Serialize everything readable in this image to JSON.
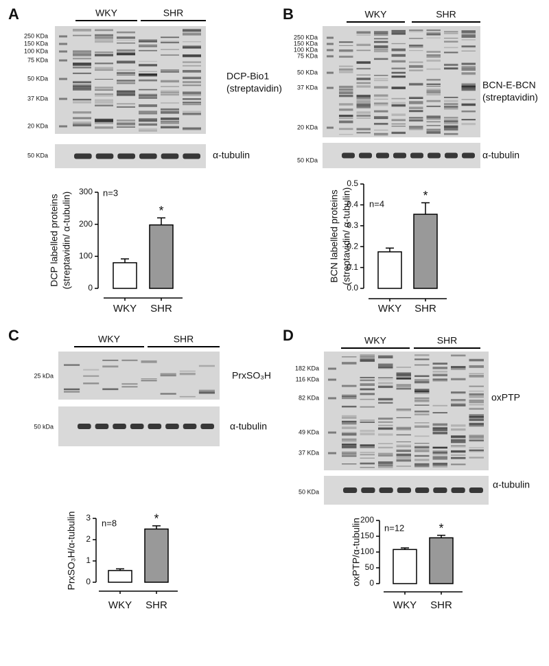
{
  "panels": [
    {
      "letter": "A",
      "groups": [
        "WKY",
        "SHR"
      ],
      "markers": [
        "250 KDa",
        "150 KDa",
        "100 KDa",
        "75 KDa",
        "50 KDa",
        "37 KDa",
        "20 KDa"
      ],
      "blot_label": [
        "DCP-Bio1",
        "(streptavidin)"
      ],
      "tubulin_marker": "50 KDa",
      "tubulin_label": "α-tubulin"
    },
    {
      "letter": "B",
      "groups": [
        "WKY",
        "SHR"
      ],
      "markers": [
        "250 KDa",
        "150 KDa",
        "100 KDa",
        "75 KDa",
        "50 KDa",
        "37 KDa",
        "20 KDa"
      ],
      "blot_label": [
        "BCN-E-BCN",
        "(streptavidin)"
      ],
      "tubulin_marker": "50 KDa",
      "tubulin_label": "α-tubulin"
    },
    {
      "letter": "C",
      "groups": [
        "WKY",
        "SHR"
      ],
      "markers": [
        "25 kDa"
      ],
      "blot_label": [
        "PrxSO₃H"
      ],
      "tubulin_marker": "50 kDa",
      "tubulin_label": "α-tubulin"
    },
    {
      "letter": "D",
      "groups": [
        "WKY",
        "SHR"
      ],
      "markers": [
        "182 KDa",
        "116 KDa",
        "82 KDa",
        "49 KDa",
        "37 KDa"
      ],
      "blot_label": [
        "oxPTP"
      ],
      "tubulin_marker": "50 KDa",
      "tubulin_label": "α-tubulin"
    }
  ],
  "chart_data": [
    {
      "type": "bar",
      "categories": [
        "WKY",
        "SHR"
      ],
      "values": [
        80,
        198
      ],
      "errors": [
        12,
        22
      ],
      "colors": [
        "#ffffff",
        "#999999"
      ],
      "ylabel": [
        "DCP labelled proteins",
        "(streptavidin/ α-tubulin)"
      ],
      "ylim": [
        0,
        300
      ],
      "yticks": [
        0,
        100,
        200,
        300
      ],
      "annotations": [
        "n=3",
        "*"
      ]
    },
    {
      "type": "bar",
      "categories": [
        "WKY",
        "SHR"
      ],
      "values": [
        0.175,
        0.355
      ],
      "errors": [
        0.018,
        0.055
      ],
      "colors": [
        "#ffffff",
        "#999999"
      ],
      "ylabel": [
        "BCN labelled proteins",
        "(streptavidin/ α-tubulin)"
      ],
      "ylim": [
        0,
        0.5
      ],
      "yticks": [
        {
          "value": 0,
          "label": "0.0"
        },
        0.1,
        0.2,
        0.3,
        0.4,
        0.5
      ],
      "annotations": [
        "n=4",
        "*"
      ]
    },
    {
      "type": "bar",
      "categories": [
        "WKY",
        "SHR"
      ],
      "values": [
        0.55,
        2.5
      ],
      "errors": [
        0.08,
        0.15
      ],
      "colors": [
        "#ffffff",
        "#999999"
      ],
      "ylabel": [
        "PrxSO₃H/α-tubulin"
      ],
      "ylim": [
        0,
        3
      ],
      "yticks": [
        0,
        1,
        2,
        3
      ],
      "annotations": [
        "n=8",
        "*"
      ]
    },
    {
      "type": "bar",
      "categories": [
        "WKY",
        "SHR"
      ],
      "values": [
        108,
        145
      ],
      "errors": [
        5,
        8
      ],
      "colors": [
        "#ffffff",
        "#999999"
      ],
      "ylabel": [
        "oxPTP/α-tubulin"
      ],
      "ylim": [
        0,
        200
      ],
      "yticks": [
        0,
        50,
        100,
        150,
        200
      ],
      "annotations": [
        "n=12",
        "*"
      ]
    }
  ]
}
